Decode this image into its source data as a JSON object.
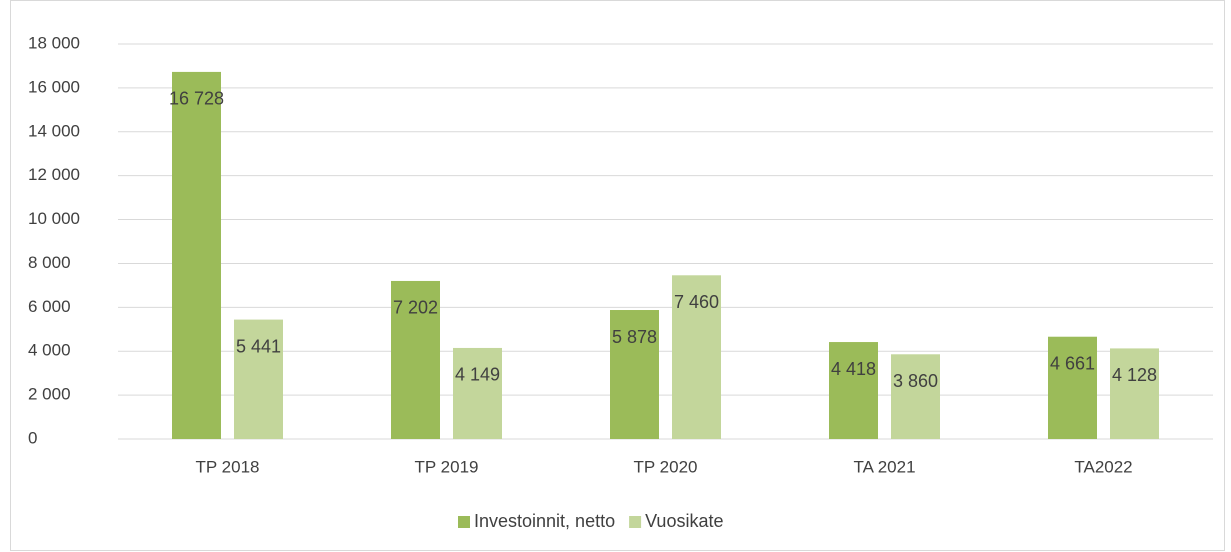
{
  "chart_data": {
    "type": "bar",
    "categories": [
      "TP 2018",
      "TP 2019",
      "TP 2020",
      "TA 2021",
      "TA2022"
    ],
    "series": [
      {
        "name": "Investoinnit, netto",
        "color": "#9bbb59",
        "values": [
          16728,
          7202,
          5878,
          4418,
          4661
        ],
        "value_labels": [
          "16 728",
          "7 202",
          "5 878",
          "4 418",
          "4 661"
        ]
      },
      {
        "name": "Vuosikate",
        "color": "#c3d69b",
        "values": [
          5441,
          4149,
          7460,
          3860,
          4128
        ],
        "value_labels": [
          "5 441",
          "4 149",
          "7 460",
          "3 860",
          "4 128"
        ]
      }
    ],
    "ylim": [
      0,
      18000
    ],
    "yticks": [
      0,
      {
        "value": 2000,
        "label": "2 000"
      },
      {
        "value": 4000,
        "label": "4 000"
      },
      {
        "value": 6000,
        "label": "6 000"
      },
      {
        "value": 8000,
        "label": "8 000"
      },
      {
        "value": 10000,
        "label": "10 000"
      },
      {
        "value": 12000,
        "label": "12 000"
      },
      {
        "value": 14000,
        "label": "14 000"
      },
      {
        "value": 16000,
        "label": "16 000"
      },
      {
        "value": 18000,
        "label": "18 000"
      }
    ],
    "grid": true,
    "legend": "bottom"
  }
}
